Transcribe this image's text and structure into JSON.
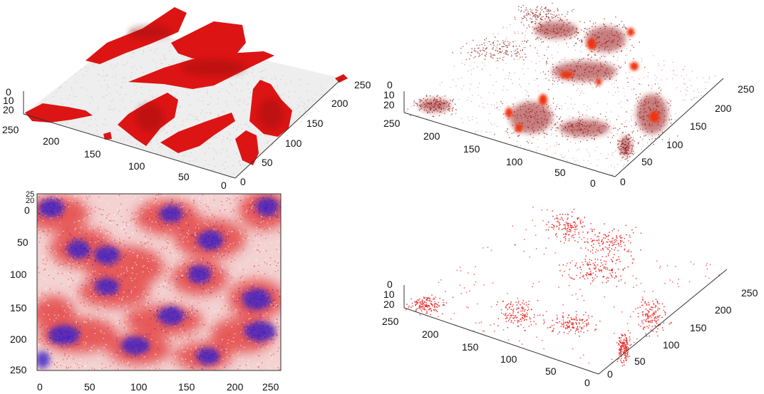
{
  "panels": {
    "top_left": {
      "z_ticks": [
        "0",
        "10",
        "20"
      ],
      "left_axis_ticks": [
        "250",
        "200",
        "150",
        "100",
        "50",
        "0"
      ],
      "right_axis_ticks": [
        "0",
        "50",
        "100",
        "150",
        "200",
        "250"
      ]
    },
    "top_right": {
      "z_ticks": [
        "0",
        "10",
        "20"
      ],
      "left_axis_ticks": [
        "250",
        "200",
        "150",
        "100",
        "50",
        "0"
      ],
      "right_axis_ticks": [
        "0",
        "50",
        "100",
        "150",
        "200",
        "250"
      ]
    },
    "bottom_left": {
      "corner_labels": [
        "25",
        "20"
      ],
      "y_ticks": [
        "0",
        "50",
        "100",
        "150",
        "200",
        "250"
      ],
      "x_ticks": [
        "0",
        "50",
        "100",
        "150",
        "200",
        "250"
      ]
    },
    "bottom_right": {
      "z_ticks": [
        "0",
        "10",
        "20"
      ],
      "left_axis_ticks": [
        "250",
        "200",
        "150",
        "100",
        "50",
        "0"
      ],
      "right_axis_ticks": [
        "0",
        "50",
        "100",
        "150",
        "200",
        "250"
      ]
    }
  },
  "colors": {
    "cell_red": "#e01010",
    "dark_red": "#8a1010",
    "nucleus_blue": "#3a22c8",
    "background_pink": "#f4d4d4"
  }
}
